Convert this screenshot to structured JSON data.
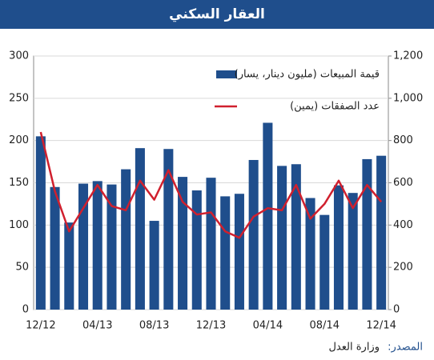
{
  "chart_data": {
    "type": "bar",
    "title": "العقار السكني",
    "categories": [
      "12/12",
      null,
      null,
      null,
      "04/13",
      null,
      null,
      null,
      "08/13",
      null,
      null,
      null,
      "12/13",
      null,
      null,
      null,
      "04/14",
      null,
      null,
      null,
      "08/14",
      null,
      null,
      null,
      "12/14"
    ],
    "series": [
      {
        "name": "قيمة المبيعات (مليون دينار، يسار)",
        "type": "bar",
        "color": "#1f4e8c",
        "values": [
          205,
          145,
          103,
          149,
          152,
          148,
          166,
          191,
          105,
          190,
          157,
          141,
          156,
          134,
          137,
          177,
          221,
          170,
          172,
          132,
          112,
          147,
          138,
          178,
          182
        ]
      },
      {
        "name": "عدد الصفقات (يمين)",
        "type": "line",
        "axis": "y2",
        "color": "#d0202e",
        "values": [
          840,
          560,
          370,
          480,
          590,
          490,
          470,
          610,
          520,
          660,
          510,
          450,
          460,
          370,
          340,
          440,
          480,
          470,
          590,
          430,
          500,
          610,
          480,
          590,
          510
        ]
      }
    ],
    "ylim": [
      0,
      300
    ],
    "yticks": [
      0,
      50,
      100,
      150,
      200,
      250,
      300
    ],
    "y2lim": [
      0,
      1200
    ],
    "y2ticks": [
      0,
      200,
      400,
      600,
      800,
      {
        "value": 1000,
        "label": "1,000"
      },
      {
        "value": 1200,
        "label": "1,200"
      }
    ],
    "grid": true,
    "source_label": "المصدر:",
    "source": "وزارة العدل"
  }
}
